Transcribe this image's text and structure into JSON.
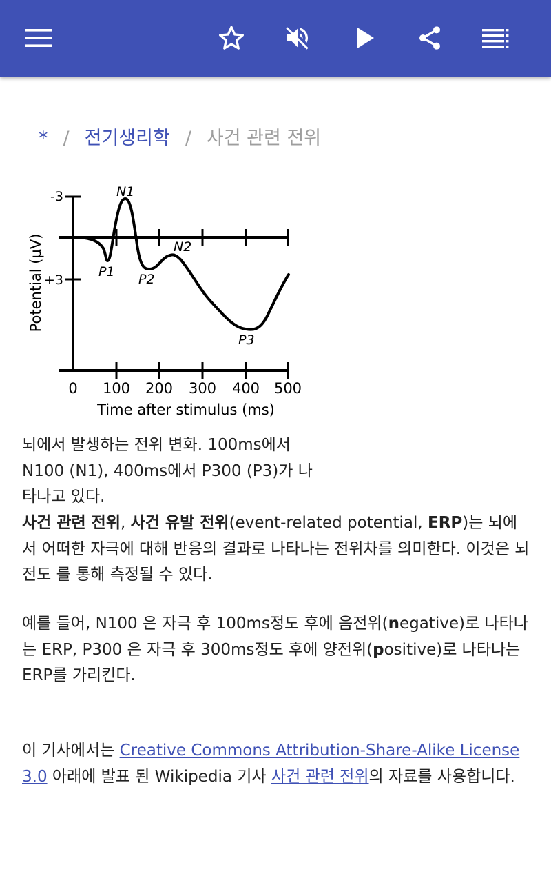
{
  "toolbar": {
    "menu_icon": "hamburger-icon",
    "bookmark_icon": "star-outline-icon",
    "mute_icon": "volume-off-icon",
    "play_icon": "play-icon",
    "share_icon": "share-icon",
    "toc_icon": "list-icon",
    "color": "#3f51b5"
  },
  "breadcrumb": {
    "home": "*",
    "separator": "/",
    "category": "전기생리학",
    "current": "사건 관련 전위"
  },
  "figure": {
    "y_label": "Potential (μV)",
    "x_label": "Time after stimulus (ms)",
    "y_ticks": [
      "-3",
      "+3"
    ],
    "x_ticks": [
      "0",
      "100",
      "200",
      "300",
      "400",
      "500"
    ],
    "peaks": [
      "N1",
      "P1",
      "N2",
      "P2",
      "P3"
    ]
  },
  "caption": {
    "line1": "뇌에서 발생하는 전위 변화. 100ms에서",
    "line2": "N100 (N1), 400ms에서 P300 (P3)가 나",
    "line3": "타나고 있다."
  },
  "paragraph1": {
    "term1": "사건 관련 전위",
    "comma": ", ",
    "term2": "사건 유발 전위",
    "paren_open": "(event-related potential, ",
    "abbr": "ERP",
    "rest": ")는 뇌에서 어떠한 자극에 대해 반응의 결과로 나타나는 전위차를 의미한다. 이것은 뇌전도 를 통해 측정될 수 있다."
  },
  "paragraph2": {
    "part1": "예를 들어, N100 은 자극 후 100ms정도 후에 음전위(",
    "n_bold": "n",
    "part2": "egative)로 나타나는 ERP, P300 은 자극 후 300ms정도 후에 양전위(",
    "p_bold": "p",
    "part3": "ositive)로 나타나는 ERP를 가리킨다."
  },
  "license": {
    "prefix": "이 기사에서는 ",
    "license_link": "Creative Commons Attribution-Share-Alike License 3.0",
    "middle": " 아래에 발표 된 Wikipedia 기사 ",
    "article_link": "사건 관련 전위",
    "suffix": "의 자료를 사용합니다."
  }
}
